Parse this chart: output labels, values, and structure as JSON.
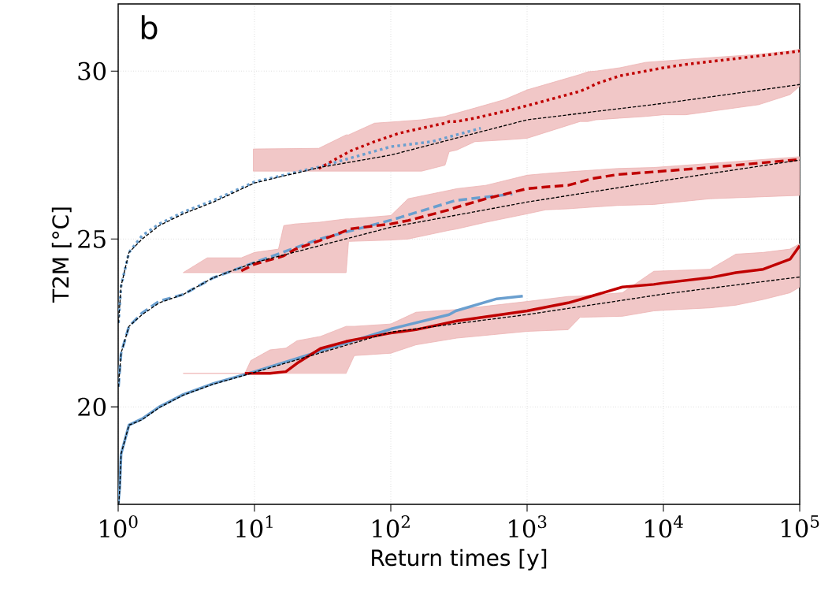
{
  "chart_data": {
    "type": "line",
    "xlabel": "Return times [y]",
    "ylabel": "T2M [°C]",
    "annotations": [
      "b"
    ],
    "log": "x",
    "grid": true,
    "xlim": [
      1,
      100000
    ],
    "ylim": [
      17.1,
      32.0
    ],
    "xticks": [
      {
        "value": 1,
        "label": "10$^{0}$"
      },
      {
        "value": 10,
        "label": "10$^{1}$"
      },
      {
        "value": 100,
        "label": "10$^{2}$"
      },
      {
        "value": 1000,
        "label": "10$^{3}$"
      },
      {
        "value": 10000,
        "label": "10$^{4}$"
      },
      {
        "value": 100000,
        "label": "10$^{5}$"
      }
    ],
    "yticks": [
      20,
      25,
      30
    ],
    "series": [
      {
        "color": "#6a9fcf",
        "line_style": "solid",
        "x": [
          1.0,
          1.027,
          1.05,
          1.2,
          1.5,
          2,
          3,
          5,
          10,
          100,
          268,
          300,
          600,
          930
        ],
        "values": [
          17.1,
          17.6,
          18.6,
          19.46,
          19.65,
          20.0,
          20.37,
          20.7,
          21.05,
          22.32,
          22.75,
          22.86,
          23.22,
          23.3
        ]
      },
      {
        "color": "#6a9fcf",
        "line_style": "dashed",
        "x": [
          1.005,
          1.05,
          1.2,
          1.5,
          2,
          3,
          5,
          10,
          30,
          100,
          300,
          780
        ],
        "values": [
          20.6,
          21.6,
          22.4,
          22.8,
          23.15,
          23.35,
          23.85,
          24.3,
          25.0,
          25.56,
          26.15,
          26.34
        ]
      },
      {
        "color": "#6a9fcf",
        "line_style": "dotted",
        "x": [
          1.005,
          1.05,
          1.2,
          1.5,
          2,
          3,
          5,
          10,
          30,
          100,
          200,
          457
        ],
        "values": [
          22.5,
          23.6,
          24.6,
          25.1,
          25.45,
          25.8,
          26.15,
          26.7,
          27.15,
          27.75,
          27.9,
          28.3
        ]
      },
      {
        "color": "#c00000",
        "line_style": "solid",
        "x": [
          3,
          8.5,
          9.4,
          13,
          17,
          20.5,
          30.5,
          47,
          54,
          100,
          153,
          305,
          1000,
          2000,
          2450,
          5000,
          8500,
          10000,
          22000,
          34000,
          54000,
          85000,
          100000
        ],
        "values": [
          null,
          21.0,
          21.0,
          21.0,
          21.05,
          21.3,
          21.74,
          21.95,
          22.0,
          22.2,
          22.3,
          22.56,
          22.86,
          23.1,
          23.2,
          23.57,
          23.65,
          23.69,
          23.85,
          24.0,
          24.1,
          24.4,
          24.8
        ],
        "upper": [
          21.0,
          21.0,
          21.38,
          21.7,
          21.75,
          21.97,
          22.1,
          22.4,
          22.4,
          22.47,
          22.82,
          22.9,
          23.14,
          23.29,
          23.3,
          23.4,
          24.04,
          24.05,
          24.1,
          24.55,
          24.6,
          24.7,
          24.86
        ],
        "lower": [
          21.0,
          21.0,
          21.0,
          21.0,
          21.0,
          21.0,
          21.0,
          21.0,
          21.53,
          21.6,
          21.85,
          22.05,
          22.25,
          22.3,
          22.67,
          22.7,
          22.86,
          22.88,
          22.95,
          23.03,
          23.2,
          23.4,
          23.57
        ]
      },
      {
        "color": "#c00000",
        "line_style": "dashed",
        "x": [
          3,
          4.5,
          8,
          10,
          15,
          16.4,
          20,
          30,
          47,
          49,
          50,
          100,
          134,
          268,
          305,
          500,
          1000,
          1370,
          2000,
          3000,
          4600,
          8500,
          22000,
          100000
        ],
        "values": [
          null,
          null,
          24.05,
          24.25,
          24.45,
          24.5,
          24.7,
          24.95,
          25.25,
          25.28,
          25.3,
          25.45,
          25.55,
          25.87,
          25.95,
          26.2,
          26.5,
          26.55,
          26.6,
          26.8,
          26.92,
          27.0,
          27.13,
          27.37
        ],
        "upper": [
          24.0,
          24.44,
          24.44,
          24.6,
          24.7,
          25.4,
          25.45,
          25.5,
          25.6,
          25.6,
          25.6,
          25.7,
          26.2,
          26.45,
          26.5,
          26.6,
          26.9,
          26.95,
          27.0,
          27.05,
          27.1,
          27.13,
          27.25,
          27.45
        ],
        "lower": [
          24.0,
          24.0,
          24.0,
          24.0,
          24.0,
          24.0,
          24.0,
          24.0,
          24.0,
          24.93,
          24.93,
          24.97,
          25.0,
          25.26,
          25.3,
          25.5,
          25.75,
          25.87,
          25.9,
          25.95,
          26.0,
          26.03,
          26.2,
          26.3
        ]
      },
      {
        "color": "#c00000",
        "line_style": "dotted",
        "x": [
          9.8,
          29.6,
          47,
          49,
          76,
          115,
          168,
          250,
          268,
          305,
          414,
          680,
          1000,
          2450,
          2800,
          3200,
          4800,
          7400,
          10000,
          14600,
          50000,
          85000,
          100000
        ],
        "values": [
          null,
          27.1,
          27.55,
          27.6,
          27.9,
          28.15,
          28.3,
          28.45,
          28.5,
          28.5,
          28.6,
          28.8,
          28.97,
          29.4,
          29.5,
          29.62,
          29.86,
          30.0,
          30.1,
          30.2,
          30.45,
          30.56,
          30.6
        ],
        "upper": [
          27.68,
          27.7,
          28.1,
          28.1,
          28.45,
          28.5,
          28.55,
          28.65,
          28.69,
          28.75,
          28.9,
          29.15,
          29.44,
          29.9,
          29.98,
          30.0,
          30.1,
          30.26,
          30.3,
          30.35,
          30.5,
          30.6,
          30.65
        ],
        "lower": [
          27.02,
          27.02,
          27.02,
          27.02,
          27.02,
          27.02,
          27.02,
          27.2,
          27.6,
          27.65,
          27.9,
          27.95,
          28.0,
          28.5,
          28.5,
          28.55,
          28.6,
          28.65,
          28.7,
          28.7,
          29.0,
          29.3,
          29.55
        ]
      },
      {
        "color": "#000000",
        "line_style": "dashed",
        "x": [
          1.01,
          1.027,
          1.05,
          1.2,
          1.5,
          2,
          3,
          5,
          10,
          100,
          1000,
          10000,
          100000
        ],
        "values": [
          17.1,
          17.58,
          18.6,
          19.46,
          19.62,
          19.98,
          20.35,
          20.68,
          21.03,
          22.23,
          22.75,
          23.36,
          23.87
        ]
      },
      {
        "color": "#000000",
        "line_style": "dashed",
        "x": [
          1.005,
          1.05,
          1.2,
          1.5,
          2,
          3,
          5,
          10,
          100,
          1000,
          10000,
          100000
        ],
        "values": [
          20.6,
          21.6,
          22.4,
          22.75,
          23.1,
          23.35,
          23.85,
          24.3,
          25.35,
          26.1,
          26.74,
          27.35
        ]
      },
      {
        "color": "#000000",
        "line_style": "dashed",
        "x": [
          1.005,
          1.05,
          1.2,
          1.5,
          2,
          3,
          5,
          10,
          30,
          100,
          1000,
          10000,
          100000
        ],
        "values": [
          22.5,
          23.6,
          24.6,
          25.0,
          25.4,
          25.75,
          26.1,
          26.67,
          27.13,
          27.5,
          28.55,
          29.04,
          29.6
        ]
      }
    ]
  }
}
